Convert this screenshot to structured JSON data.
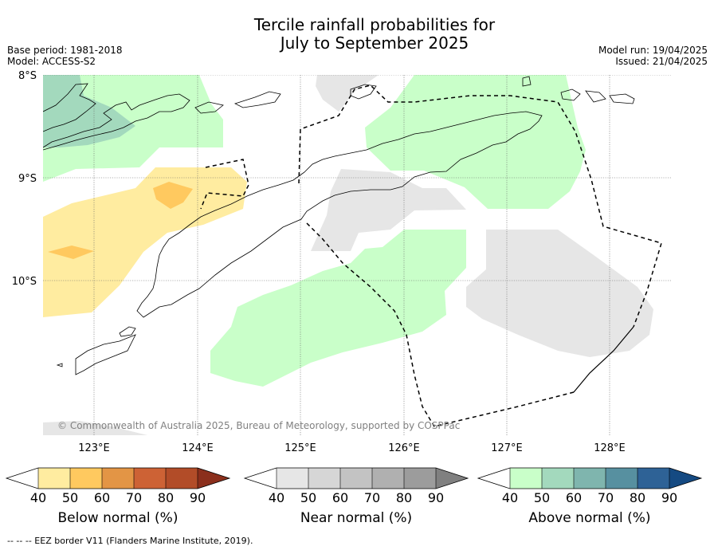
{
  "title_line1": "Tercile rainfall probabilities for",
  "title_line2": "July to September 2025",
  "base_period": "Base period: 1981-2018",
  "model": "Model: ACCESS-S2",
  "model_run": "Model run: 19/04/2025",
  "issued": "Issued: 21/04/2025",
  "copyright": "© Commonwealth of Australia 2025, Bureau of Meteorology, supported by COSPPac",
  "footnote": "--  --  -- EEZ border V11 (Flanders Marine Institute, 2019).",
  "lat_labels": [
    "8°S",
    "9°S",
    "10°S"
  ],
  "lon_labels": [
    "123°E",
    "124°E",
    "125°E",
    "126°E",
    "127°E",
    "128°E"
  ],
  "colorbars": [
    {
      "label": "Below normal (%)",
      "ticks": [
        "40",
        "50",
        "60",
        "70",
        "80",
        "90"
      ],
      "colors": [
        "#ffffff",
        "#ffeca0",
        "#ffc95f",
        "#e39545",
        "#cd6235",
        "#b24c28",
        "#8b2f1c"
      ]
    },
    {
      "label": "Near normal (%)",
      "ticks": [
        "40",
        "50",
        "60",
        "70",
        "80",
        "90"
      ],
      "colors": [
        "#ffffff",
        "#e6e6e6",
        "#d6d6d6",
        "#c3c3c3",
        "#b0b0b0",
        "#9c9c9c",
        "#808080"
      ]
    },
    {
      "label": "Above normal (%)",
      "ticks": [
        "40",
        "50",
        "60",
        "70",
        "80",
        "90"
      ],
      "colors": [
        "#ffffff",
        "#c9ffc9",
        "#a3d9bd",
        "#7fb5ae",
        "#5790a0",
        "#2e6296",
        "#154a82"
      ]
    }
  ]
}
